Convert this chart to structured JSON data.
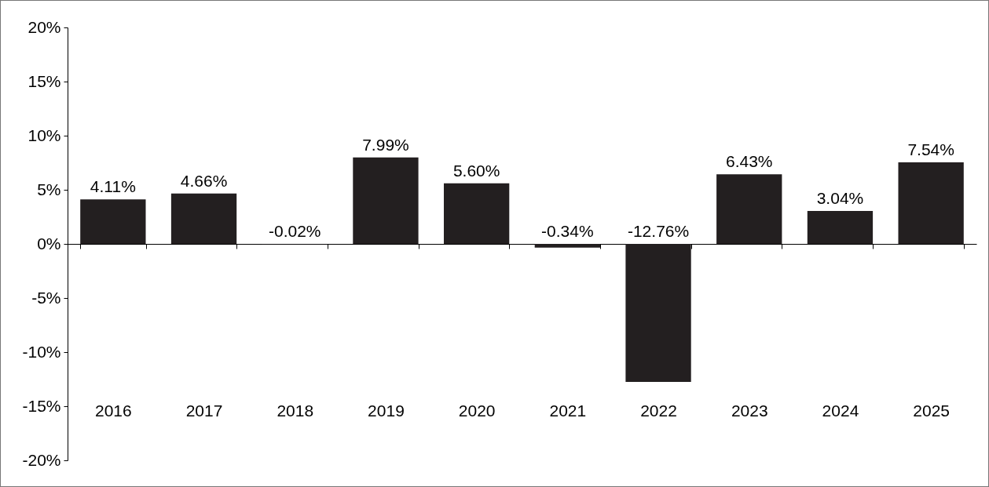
{
  "chart_data": {
    "type": "bar",
    "categories": [
      "2016",
      "2017",
      "2018",
      "2019",
      "2020",
      "2021",
      "2022",
      "2023",
      "2024",
      "2025"
    ],
    "values": [
      4.11,
      4.66,
      -0.02,
      7.99,
      5.6,
      -0.34,
      -12.76,
      6.43,
      3.04,
      7.54
    ],
    "value_labels": [
      "4.11%",
      "4.66%",
      "-0.02%",
      "7.99%",
      "5.60%",
      "-0.34%",
      "-12.76%",
      "6.43%",
      "3.04%",
      "7.54%"
    ],
    "color": "#231f20",
    "ylim": [
      -20,
      20
    ],
    "yticks": [
      {
        "value": -20,
        "label": "-20%"
      },
      {
        "value": -15,
        "label": "-15%"
      },
      {
        "value": -10,
        "label": "-10%"
      },
      {
        "value": -5,
        "label": "-5%"
      },
      {
        "value": 0,
        "label": "0%"
      },
      {
        "value": 5,
        "label": "5%"
      },
      {
        "value": 10,
        "label": "10%"
      },
      {
        "value": 15,
        "label": "15%"
      },
      {
        "value": 20,
        "label": "20%"
      }
    ]
  }
}
